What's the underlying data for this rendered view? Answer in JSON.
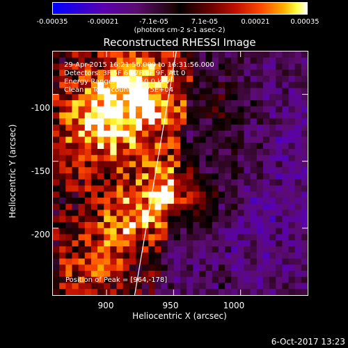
{
  "colorbar": {
    "ticks": [
      "-0.00035",
      "-0.00021",
      "-7.1e-05",
      "7.1e-05",
      "0.00021",
      "0.00035"
    ],
    "units": "(photons cm-2 s-1 asec-2)"
  },
  "title": "Reconstructed RHESSI Image",
  "info": {
    "time": "29-Apr-2015 16:21:56.000 to 16:31:56.000",
    "detectors": "Detectors: 3F 5F 6F 7F 8F 9F, Att 0",
    "energy": "Energy Range: 25.0 - 50.0 keV",
    "clean": "Clean    Total counts: 1.75E+04"
  },
  "peak": "Position of Peak = [964,-178]",
  "footer": "6-Oct-2017 13:23",
  "chart_data": {
    "type": "heatmap",
    "title": "Reconstructed RHESSI Image",
    "xlabel": "Heliocentric X (arcsec)",
    "ylabel": "Heliocentric Y (arcsec)",
    "xlim": [
      860,
      1050
    ],
    "ylim": [
      -250,
      -68
    ],
    "xticks": [
      "900",
      "950",
      "1000"
    ],
    "yticks": [
      "-100",
      "-150",
      "-200"
    ],
    "color_range": [
      -0.00035,
      0.00035
    ],
    "peak_position": [
      964,
      -178
    ],
    "limb_line": {
      "x": [
        921,
        952
      ],
      "y": [
        -250,
        -68
      ]
    },
    "sources": [
      {
        "x": 925,
        "y": -100,
        "sigma": 26,
        "amp": 0.00032
      },
      {
        "x": 890,
        "y": -125,
        "sigma": 25,
        "amp": 0.00022
      },
      {
        "x": 964,
        "y": -178,
        "sigma": 14,
        "amp": 0.00034
      },
      {
        "x": 948,
        "y": -170,
        "sigma": 18,
        "amp": 0.0002
      },
      {
        "x": 915,
        "y": -195,
        "sigma": 20,
        "amp": 0.00022
      },
      {
        "x": 885,
        "y": -230,
        "sigma": 18,
        "amp": 0.00016
      },
      {
        "x": 990,
        "y": -110,
        "sigma": 16,
        "amp": 0.00016
      },
      {
        "x": 1000,
        "y": -150,
        "sigma": 14,
        "amp": 0.0001
      },
      {
        "x": 1030,
        "y": -200,
        "sigma": 40,
        "amp": -0.00012
      },
      {
        "x": 1040,
        "y": -120,
        "sigma": 25,
        "amp": -9e-05
      }
    ]
  }
}
